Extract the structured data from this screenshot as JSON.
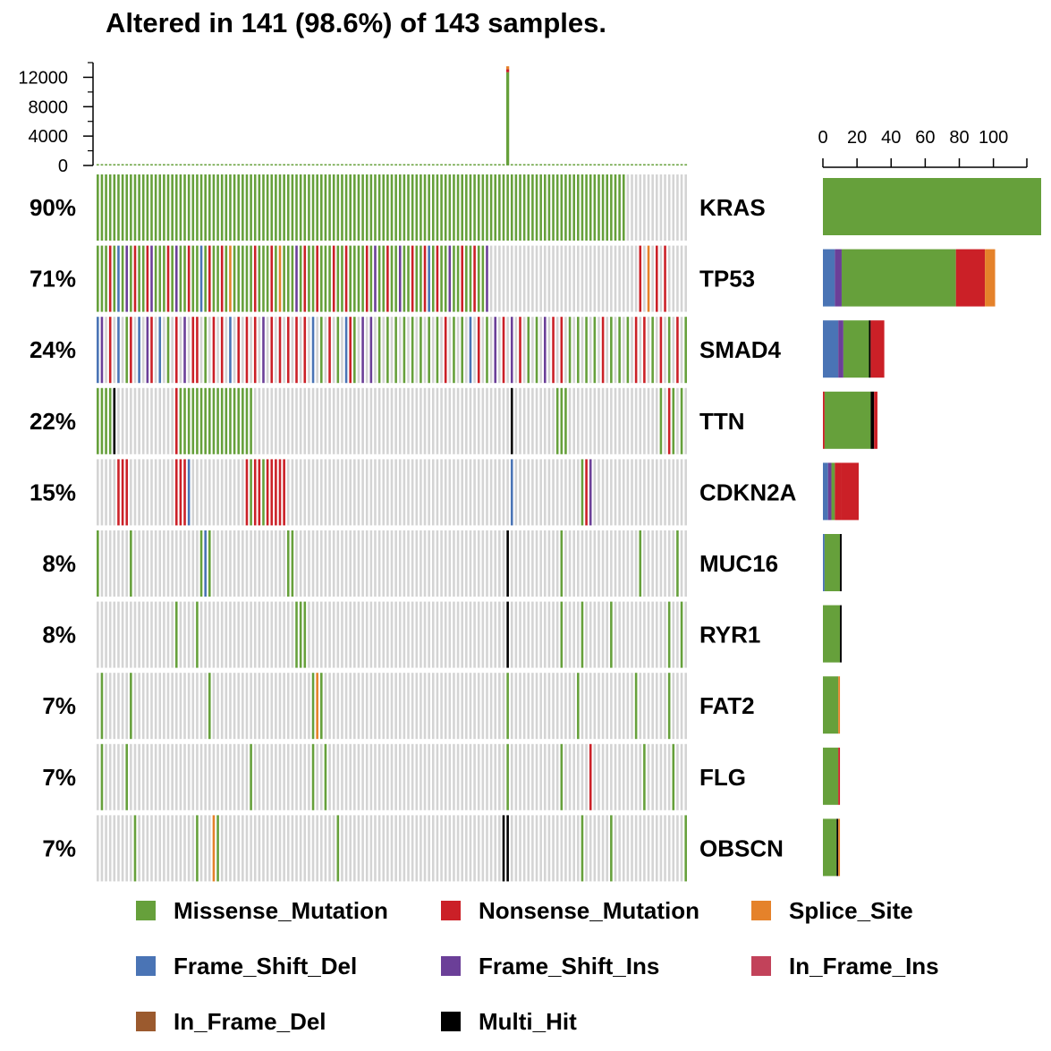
{
  "chart_data": {
    "type": "oncoplot",
    "title": "Altered in 141 (98.6%) of 143 samples.",
    "n_samples": 143,
    "tmb_axis": {
      "ticks": [
        "0",
        "4000",
        "8000",
        "12000"
      ],
      "max": 14000
    },
    "tmb_spike": {
      "sample_index": 99,
      "value": 13500
    },
    "right_axis": {
      "ticks": [
        "0",
        "20",
        "40",
        "60",
        "80",
        "100"
      ],
      "max": 128
    },
    "colors": {
      "Missense_Mutation": "#66a03b",
      "Nonsense_Mutation": "#cb2027",
      "Splice_Site": "#e5822a",
      "Frame_Shift_Del": "#4a74b5",
      "Frame_Shift_Ins": "#6b3f98",
      "In_Frame_Ins": "#c2425a",
      "In_Frame_Del": "#9b5a2e",
      "Multi_Hit": "#000000",
      "background": "#d4d4d4"
    },
    "legend": [
      {
        "label": "Missense_Mutation",
        "key": "Missense_Mutation"
      },
      {
        "label": "Nonsense_Mutation",
        "key": "Nonsense_Mutation"
      },
      {
        "label": "Splice_Site",
        "key": "Splice_Site"
      },
      {
        "label": "Frame_Shift_Del",
        "key": "Frame_Shift_Del"
      },
      {
        "label": "Frame_Shift_Ins",
        "key": "Frame_Shift_Ins"
      },
      {
        "label": "In_Frame_Ins",
        "key": "In_Frame_Ins"
      },
      {
        "label": "In_Frame_Del",
        "key": "In_Frame_Del"
      },
      {
        "label": "Multi_Hit",
        "key": "Multi_Hit"
      }
    ],
    "genes": [
      {
        "name": "KRAS",
        "pct": "90%",
        "bar": [
          [
            "Missense_Mutation",
            128
          ]
        ],
        "mutated": [
          [
            0,
            128,
            "M"
          ]
        ]
      },
      {
        "name": "TP53",
        "pct": "71%",
        "bar": [
          [
            "Frame_Shift_Del",
            7
          ],
          [
            "Frame_Shift_Ins",
            4
          ],
          [
            "Missense_Mutation",
            67
          ],
          [
            "Nonsense_Mutation",
            17
          ],
          [
            "Splice_Site",
            6
          ]
        ],
        "mutated": [
          [
            0,
            95,
            "M"
          ],
          [
            3,
            "N"
          ],
          [
            5,
            "F"
          ],
          [
            7,
            "I"
          ],
          [
            9,
            "N"
          ],
          [
            12,
            "N"
          ],
          [
            13,
            "I"
          ],
          [
            17,
            "N"
          ],
          [
            19,
            "I"
          ],
          [
            22,
            "N"
          ],
          [
            25,
            "F"
          ],
          [
            27,
            "N"
          ],
          [
            30,
            "N"
          ],
          [
            32,
            "S"
          ],
          [
            38,
            "N"
          ],
          [
            42,
            "N"
          ],
          [
            44,
            "S"
          ],
          [
            48,
            "I"
          ],
          [
            50,
            "N"
          ],
          [
            53,
            "N"
          ],
          [
            57,
            "N"
          ],
          [
            60,
            "N"
          ],
          [
            65,
            "N"
          ],
          [
            67,
            "I"
          ],
          [
            70,
            "N"
          ],
          [
            73,
            "I"
          ],
          [
            76,
            "N"
          ],
          [
            79,
            "N"
          ],
          [
            80,
            "F"
          ],
          [
            82,
            "N"
          ],
          [
            85,
            "I"
          ],
          [
            88,
            "N"
          ],
          [
            91,
            "N"
          ],
          [
            94,
            "I"
          ],
          [
            131,
            "N"
          ],
          [
            133,
            "S"
          ],
          [
            135,
            "N"
          ],
          [
            137,
            "N"
          ]
        ]
      },
      {
        "name": "SMAD4",
        "pct": "24%",
        "bar": [
          [
            "Frame_Shift_Del",
            9
          ],
          [
            "Frame_Shift_Ins",
            3
          ],
          [
            "Missense_Mutation",
            15
          ],
          [
            "Multi_Hit",
            1
          ],
          [
            "Nonsense_Mutation",
            8
          ]
        ],
        "mutated": [
          [
            0,
            "F"
          ],
          [
            1,
            "I"
          ],
          [
            3,
            "N"
          ],
          [
            5,
            "F"
          ],
          [
            7,
            "M"
          ],
          [
            8,
            "N"
          ],
          [
            10,
            "F"
          ],
          [
            12,
            "I"
          ],
          [
            13,
            "N"
          ],
          [
            15,
            "F"
          ],
          [
            17,
            "M"
          ],
          [
            19,
            "N"
          ],
          [
            21,
            "I"
          ],
          [
            23,
            "N"
          ],
          [
            24,
            "N"
          ],
          [
            26,
            "M"
          ],
          [
            28,
            "N"
          ],
          [
            30,
            "N"
          ],
          [
            32,
            "F"
          ],
          [
            34,
            "N"
          ],
          [
            36,
            "N"
          ],
          [
            38,
            "N"
          ],
          [
            40,
            "I"
          ],
          [
            42,
            "N"
          ],
          [
            44,
            "N"
          ],
          [
            46,
            "N"
          ],
          [
            48,
            "N"
          ],
          [
            50,
            "N"
          ],
          [
            52,
            "F"
          ],
          [
            54,
            "M"
          ],
          [
            56,
            "N"
          ],
          [
            58,
            "M"
          ],
          [
            60,
            "F"
          ],
          [
            61,
            "N"
          ],
          [
            62,
            "M"
          ],
          [
            64,
            "I"
          ],
          [
            66,
            "I"
          ],
          [
            68,
            "M"
          ],
          [
            70,
            "M"
          ],
          [
            72,
            "M"
          ],
          [
            74,
            "M"
          ],
          [
            76,
            "M"
          ],
          [
            78,
            "M"
          ],
          [
            80,
            "M"
          ],
          [
            82,
            "M"
          ],
          [
            84,
            "N"
          ],
          [
            86,
            "M"
          ],
          [
            88,
            "M"
          ],
          [
            90,
            "F"
          ],
          [
            92,
            "N"
          ],
          [
            94,
            "M"
          ],
          [
            96,
            "I"
          ],
          [
            98,
            "N"
          ],
          [
            100,
            "I"
          ],
          [
            102,
            "N"
          ],
          [
            104,
            "M"
          ],
          [
            106,
            "M"
          ],
          [
            108,
            "I"
          ],
          [
            110,
            "N"
          ],
          [
            112,
            "N"
          ],
          [
            114,
            "M"
          ],
          [
            116,
            "M"
          ],
          [
            118,
            "M"
          ],
          [
            120,
            "M"
          ],
          [
            122,
            "N"
          ],
          [
            124,
            "M"
          ],
          [
            126,
            "M"
          ],
          [
            128,
            "M"
          ],
          [
            130,
            "N"
          ],
          [
            132,
            "N"
          ],
          [
            134,
            "M"
          ],
          [
            136,
            "N"
          ],
          [
            138,
            "M"
          ],
          [
            140,
            "N"
          ],
          [
            142,
            "M"
          ]
        ]
      },
      {
        "name": "TTN",
        "pct": "22%",
        "bar": [
          [
            "Nonsense_Mutation",
            1
          ],
          [
            "Missense_Mutation",
            27
          ],
          [
            "Multi_Hit",
            2
          ],
          [
            "Nonsense_Mutation",
            2
          ]
        ],
        "mutated": [
          [
            0,
            "M"
          ],
          [
            1,
            "M"
          ],
          [
            2,
            "M"
          ],
          [
            3,
            "M"
          ],
          [
            4,
            "K"
          ],
          [
            19,
            "N"
          ],
          [
            20,
            "M"
          ],
          [
            21,
            "M"
          ],
          [
            22,
            "M"
          ],
          [
            23,
            "M"
          ],
          [
            24,
            "M"
          ],
          [
            25,
            "M"
          ],
          [
            26,
            "M"
          ],
          [
            27,
            "M"
          ],
          [
            28,
            "M"
          ],
          [
            29,
            "M"
          ],
          [
            30,
            "M"
          ],
          [
            31,
            "M"
          ],
          [
            32,
            "M"
          ],
          [
            33,
            "M"
          ],
          [
            34,
            "M"
          ],
          [
            35,
            "M"
          ],
          [
            36,
            "M"
          ],
          [
            37,
            "M"
          ],
          [
            100,
            "K"
          ],
          [
            111,
            "M"
          ],
          [
            112,
            "M"
          ],
          [
            113,
            "M"
          ],
          [
            136,
            "M"
          ],
          [
            138,
            "N"
          ],
          [
            139,
            "M"
          ],
          [
            141,
            "M"
          ]
        ]
      },
      {
        "name": "CDKN2A",
        "pct": "15%",
        "bar": [
          [
            "Frame_Shift_Del",
            3
          ],
          [
            "Frame_Shift_Ins",
            2
          ],
          [
            "Missense_Mutation",
            2
          ],
          [
            "Nonsense_Mutation",
            4
          ],
          [
            "Nonsense_Mutation",
            10
          ]
        ],
        "mutated": [
          [
            5,
            "N"
          ],
          [
            6,
            "N"
          ],
          [
            7,
            "N"
          ],
          [
            19,
            "N"
          ],
          [
            20,
            "N"
          ],
          [
            21,
            "N"
          ],
          [
            22,
            "F"
          ],
          [
            36,
            "N"
          ],
          [
            37,
            "M"
          ],
          [
            38,
            "N"
          ],
          [
            39,
            "N"
          ],
          [
            40,
            "M"
          ],
          [
            41,
            "N"
          ],
          [
            42,
            "N"
          ],
          [
            43,
            "N"
          ],
          [
            44,
            "N"
          ],
          [
            45,
            "N"
          ],
          [
            100,
            "F"
          ],
          [
            117,
            "M"
          ],
          [
            118,
            "N"
          ],
          [
            119,
            "I"
          ]
        ]
      },
      {
        "name": "MUC16",
        "pct": "8%",
        "bar": [
          [
            "Frame_Shift_Del",
            1
          ],
          [
            "Missense_Mutation",
            9
          ],
          [
            "Multi_Hit",
            1
          ]
        ],
        "mutated": [
          [
            0,
            "M"
          ],
          [
            8,
            "M"
          ],
          [
            25,
            "M"
          ],
          [
            26,
            "F"
          ],
          [
            27,
            "M"
          ],
          [
            46,
            "M"
          ],
          [
            47,
            "M"
          ],
          [
            99,
            "K"
          ],
          [
            112,
            "M"
          ],
          [
            131,
            "M"
          ],
          [
            140,
            "M"
          ]
        ]
      },
      {
        "name": "RYR1",
        "pct": "8%",
        "bar": [
          [
            "Missense_Mutation",
            10
          ],
          [
            "Multi_Hit",
            1
          ]
        ],
        "mutated": [
          [
            19,
            "M"
          ],
          [
            24,
            "M"
          ],
          [
            48,
            "M"
          ],
          [
            49,
            "M"
          ],
          [
            50,
            "M"
          ],
          [
            99,
            "K"
          ],
          [
            112,
            "M"
          ],
          [
            117,
            "M"
          ],
          [
            124,
            "M"
          ],
          [
            138,
            "M"
          ],
          [
            141,
            "M"
          ]
        ]
      },
      {
        "name": "FAT2",
        "pct": "7%",
        "bar": [
          [
            "Missense_Mutation",
            9
          ],
          [
            "Splice_Site",
            1
          ]
        ],
        "mutated": [
          [
            1,
            "M"
          ],
          [
            8,
            "M"
          ],
          [
            27,
            "M"
          ],
          [
            52,
            "M"
          ],
          [
            53,
            "S"
          ],
          [
            54,
            "M"
          ],
          [
            99,
            "M"
          ],
          [
            116,
            "M"
          ],
          [
            130,
            "M"
          ],
          [
            138,
            "M"
          ]
        ]
      },
      {
        "name": "FLG",
        "pct": "7%",
        "bar": [
          [
            "Missense_Mutation",
            9
          ],
          [
            "Nonsense_Mutation",
            1
          ]
        ],
        "mutated": [
          [
            1,
            "M"
          ],
          [
            7,
            "M"
          ],
          [
            37,
            "M"
          ],
          [
            52,
            "M"
          ],
          [
            55,
            "M"
          ],
          [
            99,
            "M"
          ],
          [
            112,
            "M"
          ],
          [
            119,
            "N"
          ],
          [
            132,
            "M"
          ],
          [
            139,
            "M"
          ]
        ]
      },
      {
        "name": "OBSCN",
        "pct": "7%",
        "bar": [
          [
            "Missense_Mutation",
            8
          ],
          [
            "Multi_Hit",
            1
          ],
          [
            "Splice_Site",
            1
          ]
        ],
        "mutated": [
          [
            9,
            "M"
          ],
          [
            24,
            "M"
          ],
          [
            28,
            "S"
          ],
          [
            29,
            "M"
          ],
          [
            58,
            "M"
          ],
          [
            98,
            "K"
          ],
          [
            99,
            "K"
          ],
          [
            117,
            "M"
          ],
          [
            124,
            "M"
          ],
          [
            142,
            "M"
          ]
        ]
      }
    ]
  }
}
